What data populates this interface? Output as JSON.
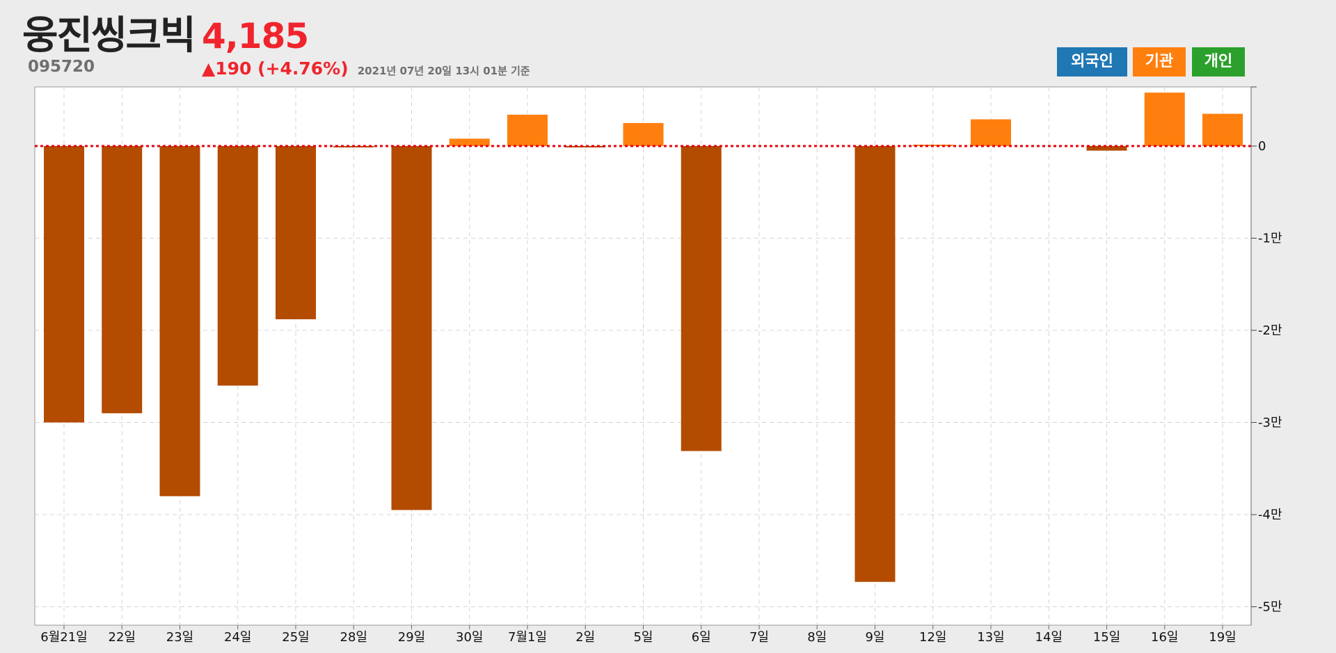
{
  "header": {
    "stock_name": "웅진씽크빅",
    "stock_code": "095720",
    "price": "4,185",
    "change": "▲190 (+4.76%)",
    "timestamp": "2021년 07년 20일 13시 01분 기준"
  },
  "legend": [
    {
      "label": "외국인",
      "color": "#1f77b4"
    },
    {
      "label": "기관",
      "color": "#ff7f0e"
    },
    {
      "label": "개인",
      "color": "#2ca02c"
    }
  ],
  "colors": {
    "positive_bar": "#ff7f0e",
    "negative_bar": "#b34b00",
    "zero_line": "#e8000b",
    "grid": "#d4d4d4"
  },
  "chart_data": {
    "type": "bar",
    "categories": [
      "6월21일",
      "22일",
      "23일",
      "24일",
      "25일",
      "28일",
      "29일",
      "30일",
      "7월1일",
      "2일",
      "5일",
      "6일",
      "7일",
      "8일",
      "9일",
      "12일",
      "13일",
      "14일",
      "15일",
      "16일",
      "19일"
    ],
    "series": [
      {
        "values": [
          -30000,
          -29000,
          -38000,
          -26000,
          -18800,
          -100,
          -39500,
          800,
          3400,
          -100,
          2500,
          -33100,
          0,
          0,
          -47300,
          100,
          2900,
          0,
          -500,
          5800,
          3500
        ]
      }
    ],
    "ylim": [
      -52000,
      6400
    ],
    "yticks": [
      0,
      -10000,
      -20000,
      -30000,
      -40000,
      -50000
    ],
    "ytick_labels": [
      "0",
      "-1만",
      "-2만",
      "-3만",
      "-4만",
      "-5만"
    ],
    "grid": true,
    "y_axis_side": "right",
    "zero_line_style": "dotted"
  }
}
